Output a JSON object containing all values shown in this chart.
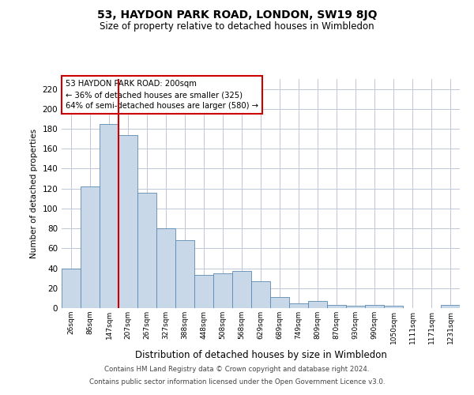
{
  "title": "53, HAYDON PARK ROAD, LONDON, SW19 8JQ",
  "subtitle": "Size of property relative to detached houses in Wimbledon",
  "xlabel": "Distribution of detached houses by size in Wimbledon",
  "ylabel": "Number of detached properties",
  "footer1": "Contains HM Land Registry data © Crown copyright and database right 2024.",
  "footer2": "Contains public sector information licensed under the Open Government Licence v3.0.",
  "annotation_title": "53 HAYDON PARK ROAD: 200sqm",
  "annotation_line1": "← 36% of detached houses are smaller (325)",
  "annotation_line2": "64% of semi-detached houses are larger (580) →",
  "bar_color": "#c8d8e8",
  "bar_edge_color": "#5a8ab0",
  "vline_color": "#cc0000",
  "annotation_box_color": "#ffffff",
  "annotation_box_edge": "#cc0000",
  "background_color": "#ffffff",
  "grid_color": "#c0c8d8",
  "categories": [
    "26sqm",
    "86sqm",
    "147sqm",
    "207sqm",
    "267sqm",
    "327sqm",
    "388sqm",
    "448sqm",
    "508sqm",
    "568sqm",
    "629sqm",
    "689sqm",
    "749sqm",
    "809sqm",
    "870sqm",
    "930sqm",
    "990sqm",
    "1050sqm",
    "1111sqm",
    "1171sqm",
    "1231sqm"
  ],
  "values": [
    40,
    122,
    185,
    174,
    116,
    80,
    68,
    33,
    35,
    37,
    27,
    11,
    5,
    7,
    3,
    2,
    3,
    2,
    0,
    0,
    3
  ],
  "vline_x": 3,
  "ylim": [
    0,
    230
  ],
  "yticks": [
    0,
    20,
    40,
    60,
    80,
    100,
    120,
    140,
    160,
    180,
    200,
    220
  ]
}
